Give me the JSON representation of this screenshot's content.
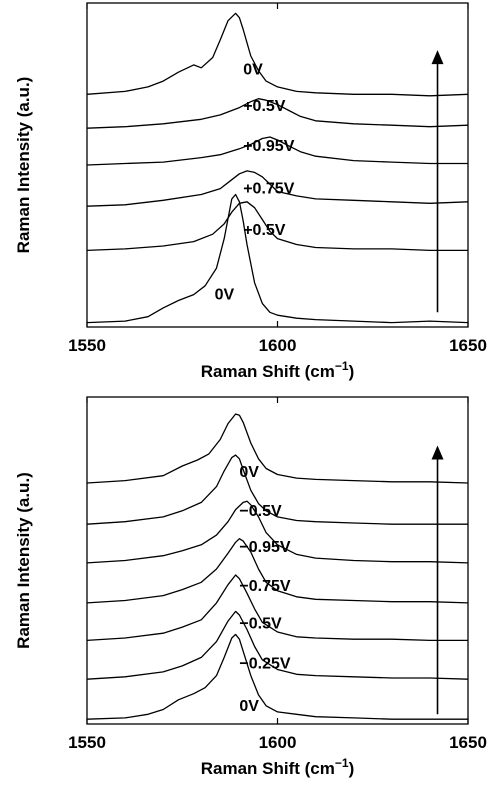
{
  "chart_data": [
    {
      "type": "line",
      "title": "",
      "xlabel": "Raman Shift (cm",
      "xlabel_sup": "−1",
      "xlabel_end": ")",
      "ylabel": "Raman Intensity (a.u.)",
      "xlim": [
        1550,
        1650
      ],
      "ylim": [
        0,
        22
      ],
      "yticks_shown": false,
      "x_ticks": [
        1550,
        1600,
        1650
      ],
      "x_tick_labels": [
        "1550",
        "1600",
        "1650"
      ],
      "grid": false,
      "arrow": {
        "x": 1642,
        "from_y": 1.0,
        "to_y": 18.8,
        "direction": "up"
      },
      "series": [
        {
          "name": "0V",
          "label_x": 1583.5,
          "label_y": 2.2,
          "x": [
            1550,
            1560,
            1566,
            1570,
            1574,
            1578,
            1581,
            1584,
            1586,
            1588,
            1589,
            1590,
            1591,
            1592,
            1594,
            1596,
            1598,
            1600,
            1605,
            1610,
            1620,
            1630,
            1640,
            1650
          ],
          "y": [
            0.3,
            0.4,
            0.7,
            1.3,
            1.8,
            2.2,
            2.8,
            4.0,
            6.0,
            8.7,
            9.0,
            8.5,
            7.2,
            5.6,
            3.0,
            1.6,
            1.0,
            0.8,
            0.6,
            0.5,
            0.4,
            0.3,
            0.4,
            0.3
          ]
        },
        {
          "name": "+0.5V",
          "label_x": 1591,
          "label_y": 6.6,
          "x": [
            1550,
            1560,
            1570,
            1578,
            1583,
            1586,
            1588,
            1590,
            1592,
            1594,
            1596,
            1598,
            1600,
            1605,
            1610,
            1620,
            1630,
            1640,
            1650
          ],
          "y": [
            5.2,
            5.3,
            5.5,
            5.8,
            6.3,
            7.0,
            7.8,
            8.4,
            8.5,
            8.1,
            7.3,
            6.5,
            6.0,
            5.6,
            5.4,
            5.3,
            5.3,
            5.2,
            5.2
          ]
        },
        {
          "name": "+0.75V",
          "label_x": 1591,
          "label_y": 9.4,
          "x": [
            1550,
            1560,
            1570,
            1580,
            1585,
            1588,
            1590,
            1592,
            1594,
            1596,
            1598,
            1600,
            1605,
            1610,
            1620,
            1630,
            1640,
            1650
          ],
          "y": [
            8.2,
            8.3,
            8.6,
            9.0,
            9.4,
            10.0,
            10.4,
            10.6,
            10.5,
            10.2,
            9.7,
            9.2,
            8.9,
            8.7,
            8.6,
            8.5,
            8.4,
            8.5
          ]
        },
        {
          "name": "+0.95V",
          "label_x": 1591,
          "label_y": 12.3,
          "x": [
            1550,
            1560,
            1570,
            1580,
            1585,
            1590,
            1593,
            1596,
            1598,
            1600,
            1603,
            1606,
            1610,
            1620,
            1630,
            1640,
            1650
          ],
          "y": [
            11.0,
            11.1,
            11.2,
            11.5,
            11.7,
            12.1,
            12.4,
            12.8,
            12.9,
            12.7,
            12.3,
            11.9,
            11.6,
            11.3,
            11.2,
            11.1,
            11.1
          ]
        },
        {
          "name": "+0.5V",
          "label_x": 1591,
          "label_y": 15.0,
          "x": [
            1550,
            1560,
            1570,
            1580,
            1585,
            1590,
            1593,
            1595,
            1597,
            1600,
            1603,
            1606,
            1610,
            1620,
            1630,
            1640,
            1650
          ],
          "y": [
            13.5,
            13.6,
            13.8,
            14.1,
            14.4,
            14.9,
            15.3,
            15.5,
            15.4,
            15.1,
            14.7,
            14.3,
            14.0,
            13.8,
            13.7,
            13.6,
            13.7
          ]
        },
        {
          "name": "0V",
          "label_x": 1591,
          "label_y": 17.5,
          "x": [
            1550,
            1560,
            1566,
            1570,
            1574,
            1578,
            1580,
            1583,
            1585,
            1587,
            1589,
            1590,
            1591,
            1592,
            1593,
            1595,
            1597,
            1600,
            1605,
            1610,
            1620,
            1630,
            1640,
            1650
          ],
          "y": [
            15.8,
            16.0,
            16.3,
            16.7,
            17.3,
            17.8,
            17.6,
            18.3,
            19.5,
            20.8,
            21.3,
            21.0,
            20.2,
            19.3,
            18.4,
            17.4,
            16.7,
            16.3,
            16.0,
            15.9,
            15.8,
            15.8,
            15.7,
            15.8
          ]
        }
      ]
    },
    {
      "type": "line",
      "title": "",
      "xlabel": "Raman Shift (cm",
      "xlabel_sup": "−1",
      "xlabel_end": ")",
      "ylabel": "Raman Intensity (a.u.)",
      "xlim": [
        1550,
        1650
      ],
      "ylim": [
        0,
        27
      ],
      "yticks_shown": false,
      "x_ticks": [
        1550,
        1600,
        1650
      ],
      "x_tick_labels": [
        "1550",
        "1600",
        "1650"
      ],
      "grid": false,
      "arrow": {
        "x": 1642,
        "from_y": 0.8,
        "to_y": 23.0,
        "direction": "up"
      },
      "series": [
        {
          "name": "0V",
          "label_x": 1590,
          "label_y": 1.5,
          "x": [
            1550,
            1560,
            1566,
            1570,
            1574,
            1578,
            1581,
            1584,
            1586,
            1588,
            1589,
            1590,
            1591,
            1593,
            1595,
            1597,
            1600,
            1605,
            1610,
            1620,
            1630,
            1640,
            1650
          ],
          "y": [
            0.4,
            0.5,
            0.8,
            1.2,
            2.0,
            2.5,
            3.0,
            4.0,
            5.5,
            7.1,
            7.4,
            7.0,
            6.0,
            4.0,
            2.4,
            1.5,
            1.0,
            0.8,
            0.6,
            0.5,
            0.4,
            0.4,
            0.4
          ]
        },
        {
          "name": "−0.25V",
          "label_x": 1590,
          "label_y": 5.0,
          "x": [
            1550,
            1560,
            1570,
            1575,
            1580,
            1584,
            1587,
            1589,
            1590,
            1592,
            1594,
            1596,
            1600,
            1605,
            1610,
            1620,
            1630,
            1640,
            1650
          ],
          "y": [
            3.7,
            3.9,
            4.3,
            4.8,
            5.5,
            6.8,
            8.5,
            9.3,
            9.0,
            7.8,
            6.4,
            5.3,
            4.5,
            4.1,
            4.0,
            3.9,
            3.8,
            3.8,
            3.7
          ]
        },
        {
          "name": "−0.5V",
          "label_x": 1590,
          "label_y": 8.3,
          "x": [
            1550,
            1560,
            1570,
            1575,
            1580,
            1584,
            1587,
            1589,
            1590,
            1592,
            1594,
            1596,
            1600,
            1605,
            1610,
            1620,
            1630,
            1640,
            1650
          ],
          "y": [
            6.9,
            7.1,
            7.5,
            8.0,
            8.6,
            10.0,
            11.5,
            12.3,
            12.0,
            10.8,
            9.5,
            8.4,
            7.6,
            7.2,
            7.1,
            7.0,
            7.0,
            6.9,
            6.9
          ]
        },
        {
          "name": "−0.75V",
          "label_x": 1590,
          "label_y": 11.4,
          "x": [
            1550,
            1560,
            1570,
            1575,
            1580,
            1584,
            1587,
            1589,
            1590,
            1591,
            1593,
            1595,
            1597,
            1600,
            1605,
            1610,
            1620,
            1630,
            1640,
            1650
          ],
          "y": [
            10.0,
            10.2,
            10.6,
            11.1,
            11.7,
            12.8,
            14.1,
            15.0,
            15.3,
            15.1,
            14.2,
            12.8,
            11.7,
            11.0,
            10.5,
            10.3,
            10.2,
            10.1,
            10.1,
            10.0
          ]
        },
        {
          "name": "−0.95V",
          "label_x": 1590,
          "label_y": 14.6,
          "x": [
            1550,
            1560,
            1570,
            1575,
            1580,
            1584,
            1587,
            1589,
            1591,
            1592,
            1593,
            1595,
            1597,
            1600,
            1605,
            1610,
            1620,
            1630,
            1640,
            1650
          ],
          "y": [
            13.3,
            13.5,
            13.9,
            14.3,
            14.8,
            15.6,
            16.7,
            17.7,
            18.3,
            18.4,
            18.1,
            17.1,
            15.8,
            14.8,
            14.0,
            13.7,
            13.5,
            13.4,
            13.4,
            13.3
          ]
        },
        {
          "name": "−0.5V",
          "label_x": 1590,
          "label_y": 17.6,
          "x": [
            1550,
            1560,
            1570,
            1575,
            1580,
            1584,
            1586,
            1588,
            1589,
            1590,
            1591,
            1593,
            1595,
            1597,
            1600,
            1605,
            1610,
            1620,
            1630,
            1640,
            1650
          ],
          "y": [
            16.5,
            16.7,
            17.1,
            17.6,
            18.3,
            19.6,
            20.9,
            22.0,
            22.2,
            21.9,
            21.0,
            19.3,
            18.2,
            17.6,
            17.1,
            16.8,
            16.7,
            16.6,
            16.5,
            16.5,
            16.5
          ]
        },
        {
          "name": "0V",
          "label_x": 1590,
          "label_y": 20.8,
          "x": [
            1550,
            1560,
            1570,
            1575,
            1579,
            1582,
            1585,
            1587,
            1589,
            1590,
            1591,
            1593,
            1595,
            1597,
            1600,
            1605,
            1610,
            1620,
            1630,
            1640,
            1650
          ],
          "y": [
            19.9,
            20.1,
            20.5,
            21.3,
            21.8,
            22.3,
            23.5,
            24.8,
            25.6,
            25.5,
            24.9,
            23.2,
            21.9,
            21.1,
            20.6,
            20.3,
            20.2,
            20.1,
            20.0,
            20.0,
            19.9
          ]
        }
      ]
    }
  ]
}
